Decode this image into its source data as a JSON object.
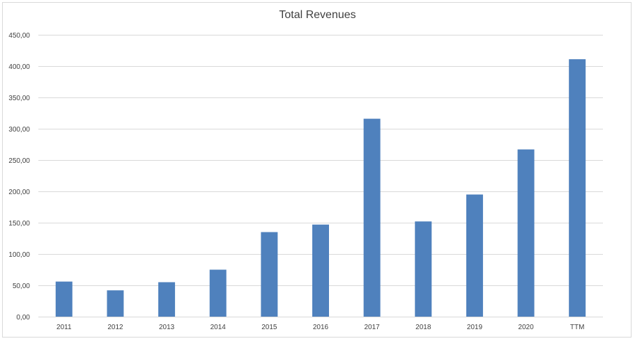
{
  "chart_data": {
    "type": "bar",
    "title": "Total Revenues",
    "xlabel": "",
    "ylabel": "",
    "categories": [
      "2011",
      "2012",
      "2013",
      "2014",
      "2015",
      "2016",
      "2017",
      "2018",
      "2019",
      "2020",
      "TTM"
    ],
    "values": [
      56,
      42,
      55,
      75,
      135,
      147,
      316,
      152,
      195,
      267,
      411
    ],
    "ylim": [
      0,
      450
    ],
    "yticks": [
      0,
      50,
      100,
      150,
      200,
      250,
      300,
      350,
      400,
      450
    ],
    "ytick_labels": [
      "0,00",
      "50,00",
      "100,00",
      "150,00",
      "200,00",
      "250,00",
      "300,00",
      "350,00",
      "400,00",
      "450,00"
    ],
    "grid": true,
    "legend": "none",
    "bar_color": "#4f81bd",
    "grid_color": "#d9d9d9"
  }
}
